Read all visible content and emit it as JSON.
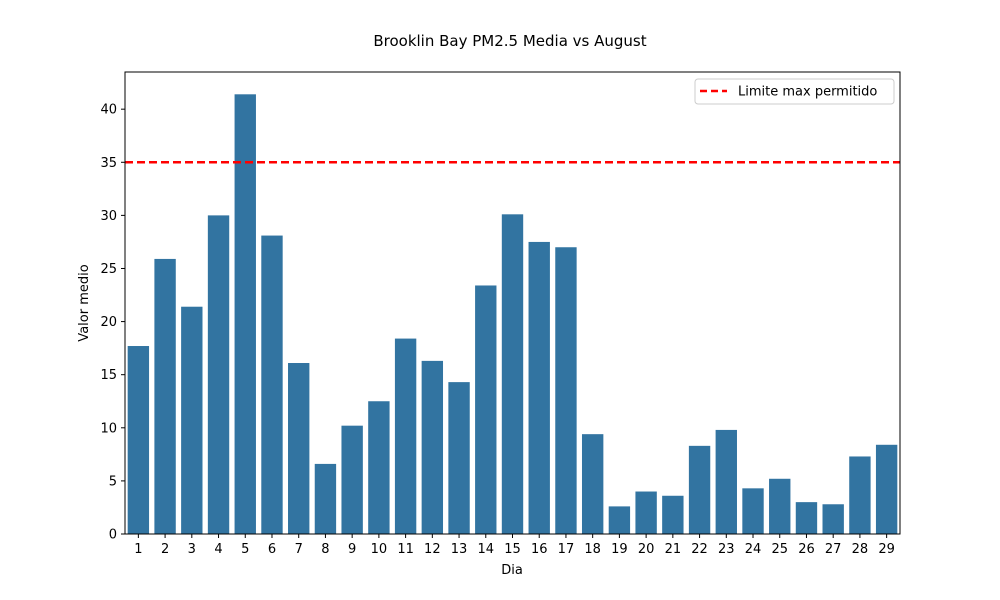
{
  "chart_data": {
    "type": "bar",
    "title": "Brooklin Bay PM2.5 Media vs August",
    "xlabel": "Dia",
    "ylabel": "Valor medio",
    "categories": [
      "1",
      "2",
      "3",
      "4",
      "5",
      "6",
      "7",
      "8",
      "9",
      "10",
      "11",
      "12",
      "13",
      "14",
      "15",
      "16",
      "17",
      "18",
      "19",
      "20",
      "21",
      "22",
      "23",
      "24",
      "25",
      "26",
      "27",
      "28",
      "29"
    ],
    "values": [
      17.7,
      25.9,
      21.4,
      30.0,
      41.4,
      28.1,
      16.1,
      6.6,
      10.2,
      12.5,
      18.4,
      16.3,
      14.3,
      23.4,
      30.1,
      27.5,
      27.0,
      9.4,
      2.6,
      4.0,
      3.6,
      8.3,
      9.8,
      4.3,
      5.2,
      3.0,
      2.8,
      7.3,
      8.4
    ],
    "yticks": [
      0,
      5,
      10,
      15,
      20,
      25,
      30,
      35,
      40
    ],
    "ylim": [
      0,
      43.5
    ],
    "bar_color": "#3274a1",
    "reference_line": {
      "value": 35,
      "label": "Limite max permitido",
      "color": "#ff0000",
      "style": "dashed"
    },
    "legend_position": "top-right",
    "grid": false
  }
}
